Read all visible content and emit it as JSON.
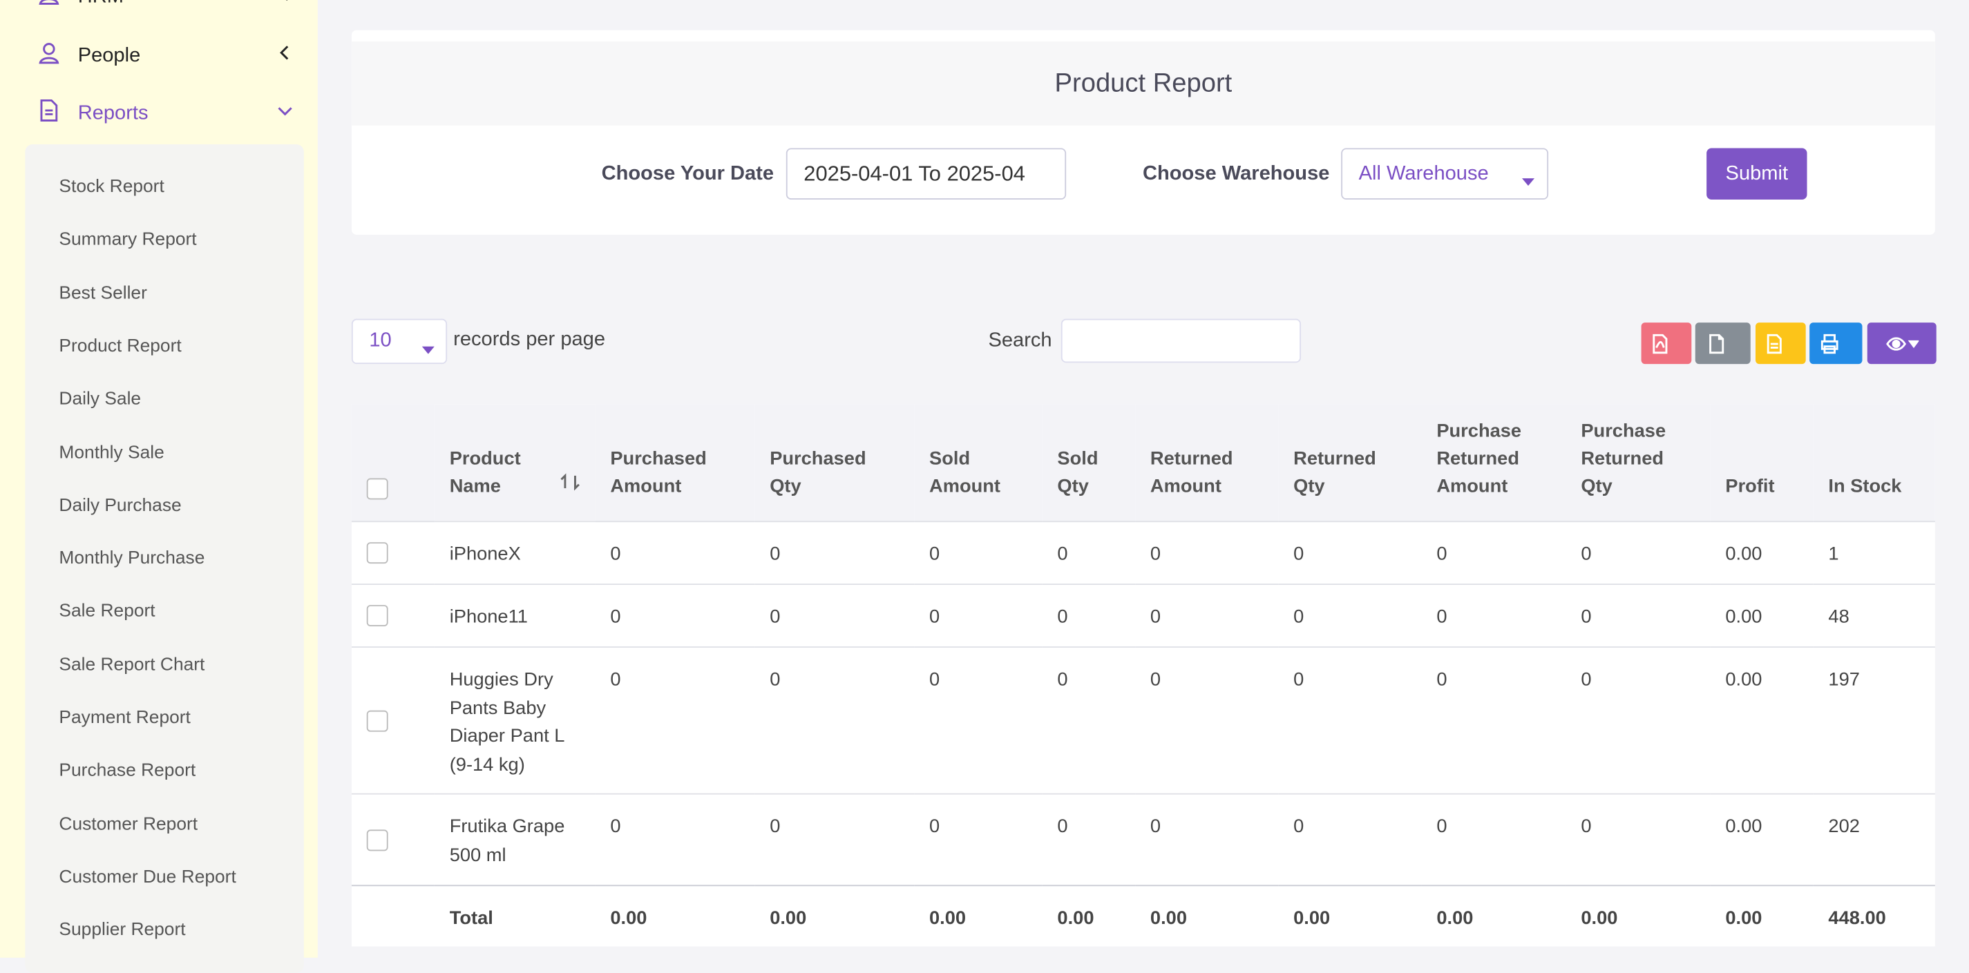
{
  "sidebar": {
    "items": [
      {
        "label": "HRM"
      },
      {
        "label": "People"
      },
      {
        "label": "Reports"
      }
    ],
    "submenu": [
      "Stock Report",
      "Summary Report",
      "Best Seller",
      "Product Report",
      "Daily Sale",
      "Monthly Sale",
      "Daily Purchase",
      "Monthly Purchase",
      "Sale Report",
      "Sale Report Chart",
      "Payment Report",
      "Purchase Report",
      "Customer Report",
      "Customer Due Report",
      "Supplier Report"
    ]
  },
  "filter": {
    "title": "Product Report",
    "date_label": "Choose Your Date",
    "date_value": "2025-04-01 To 2025-04",
    "warehouse_label": "Choose Warehouse",
    "warehouse_value": "All Warehouse",
    "submit": "Submit"
  },
  "toolbar": {
    "per_page": "10",
    "per_page_label": "records per page",
    "search_label": "Search"
  },
  "table": {
    "headers": [
      "Product Name",
      "Purchased Amount",
      "Purchased Qty",
      "Sold Amount",
      "Sold Qty",
      "Returned Amount",
      "Returned Qty",
      "Purchase Returned Amount",
      "Purchase Returned Qty",
      "Profit",
      "In Stock"
    ],
    "rows": [
      [
        "iPhoneX",
        "0",
        "0",
        "0",
        "0",
        "0",
        "0",
        "0",
        "0",
        "0.00",
        "1"
      ],
      [
        "iPhone11",
        "0",
        "0",
        "0",
        "0",
        "0",
        "0",
        "0",
        "0",
        "0.00",
        "48"
      ],
      [
        "Huggies Dry Pants Baby Diaper Pant L (9-14 kg)",
        "0",
        "0",
        "0",
        "0",
        "0",
        "0",
        "0",
        "0",
        "0.00",
        "197"
      ],
      [
        "Frutika Grape 500 ml",
        "0",
        "0",
        "0",
        "0",
        "0",
        "0",
        "0",
        "0",
        "0.00",
        "202"
      ]
    ],
    "total": [
      "Total",
      "0.00",
      "0.00",
      "0.00",
      "0.00",
      "0.00",
      "0.00",
      "0.00",
      "0.00",
      "0.00",
      "448.00"
    ]
  }
}
